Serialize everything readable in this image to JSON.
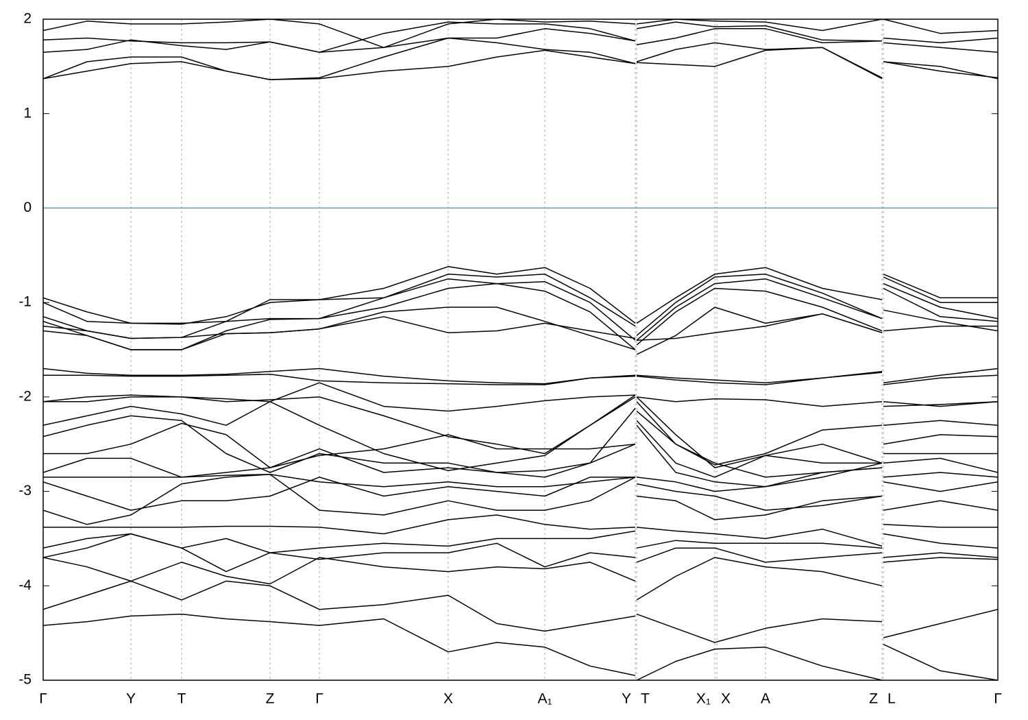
{
  "chart_data": {
    "type": "line",
    "x": [
      0,
      64,
      128,
      202,
      267,
      331,
      403,
      497,
      591,
      662,
      732,
      798,
      864,
      865,
      866,
      923,
      980,
      1054,
      1137,
      1224,
      1225,
      1226,
      1309,
      1393
    ],
    "xlim": [
      0,
      1393
    ],
    "xticks": [
      {
        "value": 0,
        "label": "Γ"
      },
      {
        "value": 128,
        "label": "Y"
      },
      {
        "value": 202,
        "label": "T"
      },
      {
        "value": 331,
        "label": "Z"
      },
      {
        "value": 403,
        "label": "Γ"
      },
      {
        "value": 591,
        "label": "X"
      },
      {
        "value": 732,
        "label": "A₁"
      },
      {
        "value": 864,
        "label": "Y"
      },
      {
        "value": 866,
        "label": "T"
      },
      {
        "value": 980,
        "label": "X₁"
      },
      {
        "value": 983,
        "label": "X"
      },
      {
        "value": 1054,
        "label": "A"
      },
      {
        "value": 1224,
        "label": "Z"
      },
      {
        "value": 1226,
        "label": "L"
      },
      {
        "value": 1393,
        "label": "Γ"
      }
    ],
    "ylim": [
      -5,
      2
    ],
    "yticks": [
      -5,
      -4,
      -3,
      -2,
      -1,
      0,
      1,
      2
    ],
    "grid": true,
    "hline": 0,
    "hline_color": "#4fa8c4",
    "series": [
      {
        "color": "#000000",
        "values": [
          1.37,
          1.45,
          1.53,
          1.55,
          1.45,
          1.36,
          1.37,
          1.45,
          1.5,
          1.6,
          1.67,
          1.6,
          1.53,
          null,
          1.54,
          1.52,
          1.5,
          1.67,
          1.7,
          1.37,
          null,
          1.55,
          1.5,
          1.37
        ]
      },
      {
        "color": "#000000",
        "values": [
          1.37,
          1.55,
          1.6,
          1.6,
          1.45,
          1.36,
          1.38,
          1.6,
          1.8,
          1.75,
          1.68,
          1.65,
          1.53,
          null,
          1.55,
          1.68,
          1.75,
          1.68,
          1.7,
          1.38,
          null,
          1.55,
          1.45,
          1.38
        ]
      },
      {
        "color": "#000000",
        "values": [
          1.65,
          1.68,
          1.78,
          1.72,
          1.68,
          1.76,
          1.65,
          1.7,
          1.8,
          1.8,
          1.9,
          1.85,
          1.77,
          null,
          1.73,
          1.8,
          1.9,
          1.9,
          1.75,
          1.77,
          null,
          1.75,
          1.7,
          1.65
        ]
      },
      {
        "color": "#000000",
        "values": [
          1.78,
          1.8,
          1.77,
          1.75,
          1.75,
          1.76,
          1.65,
          1.85,
          1.97,
          1.95,
          1.95,
          1.9,
          1.77,
          null,
          1.9,
          1.97,
          1.92,
          1.93,
          1.78,
          1.77,
          null,
          1.8,
          1.75,
          1.8
        ]
      },
      {
        "color": "#000000",
        "values": [
          1.88,
          1.98,
          1.95,
          1.95,
          1.97,
          2.0,
          1.95,
          1.7,
          1.95,
          2.0,
          1.97,
          1.98,
          1.95,
          null,
          1.95,
          2.0,
          1.98,
          1.97,
          1.88,
          2.0,
          null,
          2.0,
          1.85,
          1.88
        ]
      },
      {
        "color": "#000000",
        "values": [
          -0.95,
          -1.1,
          -1.22,
          -1.22,
          -1.2,
          -0.97,
          -0.97,
          -0.85,
          -0.62,
          -0.7,
          -0.63,
          -0.85,
          -1.22,
          null,
          -1.22,
          -0.95,
          -0.7,
          -0.63,
          -0.85,
          -0.97,
          null,
          -0.7,
          -0.95,
          -0.95
        ]
      },
      {
        "color": "#000000",
        "values": [
          -1.0,
          -1.2,
          -1.22,
          -1.23,
          -1.15,
          -1.0,
          -0.97,
          -0.95,
          -0.7,
          -0.73,
          -0.7,
          -0.95,
          -1.25,
          null,
          -1.35,
          -1.0,
          -0.73,
          -0.7,
          -0.9,
          -1.17,
          null,
          -0.73,
          -1.0,
          -1.0
        ]
      },
      {
        "color": "#000000",
        "values": [
          -1.15,
          -1.3,
          -1.38,
          -1.37,
          -1.2,
          -1.17,
          -1.17,
          -0.95,
          -0.75,
          -0.8,
          -0.78,
          -1.0,
          -1.4,
          null,
          -1.4,
          -1.05,
          -0.8,
          -0.75,
          -0.95,
          -1.17,
          null,
          -0.8,
          -1.05,
          -1.17
        ]
      },
      {
        "color": "#000000",
        "values": [
          -1.2,
          -1.35,
          -1.5,
          -1.5,
          -1.3,
          -1.18,
          -1.17,
          -1.05,
          -0.85,
          -0.8,
          -0.88,
          -1.1,
          -1.5,
          null,
          -1.45,
          -1.1,
          -0.85,
          -0.88,
          -1.05,
          -1.3,
          null,
          -0.85,
          -1.15,
          -1.2
        ]
      },
      {
        "color": "#000000",
        "values": [
          -1.3,
          -1.35,
          -1.5,
          -1.5,
          -1.33,
          -1.32,
          -1.28,
          -1.1,
          -1.05,
          -1.05,
          -1.2,
          -1.35,
          -1.5,
          null,
          -1.55,
          -1.35,
          -1.05,
          -1.22,
          -1.12,
          -1.32,
          null,
          -1.08,
          -1.2,
          -1.3
        ]
      },
      {
        "color": "#000000",
        "values": [
          -1.25,
          -1.3,
          -1.38,
          -1.37,
          -1.33,
          -1.32,
          -1.28,
          -1.15,
          -1.32,
          -1.3,
          -1.22,
          -1.3,
          -1.38,
          null,
          -1.4,
          -1.38,
          -1.32,
          -1.25,
          -1.12,
          -1.32,
          null,
          -1.3,
          -1.25,
          -1.25
        ]
      },
      {
        "color": "#000000",
        "values": [
          -1.7,
          -1.75,
          -1.77,
          -1.77,
          -1.76,
          -1.73,
          -1.7,
          -1.78,
          -1.83,
          -1.85,
          -1.86,
          -1.8,
          -1.77,
          null,
          -1.77,
          -1.8,
          -1.82,
          -1.85,
          -1.8,
          -1.73,
          null,
          -1.85,
          -1.77,
          -1.7
        ]
      },
      {
        "color": "#000000",
        "values": [
          -1.77,
          -1.77,
          -1.78,
          -1.78,
          -1.77,
          -1.76,
          -1.83,
          -1.85,
          -1.86,
          -1.87,
          -1.87,
          -1.8,
          -1.78,
          null,
          -1.78,
          -1.82,
          -1.85,
          -1.87,
          -1.8,
          -1.74,
          null,
          -1.87,
          -1.8,
          -1.77
        ]
      },
      {
        "color": "#000000",
        "values": [
          -2.05,
          -2.0,
          -1.98,
          -2.0,
          -2.02,
          -2.05,
          -1.85,
          -2.1,
          -2.15,
          -2.1,
          -2.04,
          -2.0,
          -1.98,
          null,
          -2.0,
          -2.05,
          -2.02,
          -2.03,
          -2.1,
          -2.05,
          null,
          -2.05,
          -2.1,
          -2.05
        ]
      },
      {
        "color": "#000000",
        "values": [
          -2.05,
          -2.05,
          -2.0,
          -2.0,
          -2.05,
          -2.03,
          -2.0,
          -2.2,
          -2.42,
          -2.5,
          -2.6,
          -2.3,
          -1.98,
          null,
          -2.05,
          -2.5,
          -2.72,
          -2.6,
          -2.35,
          -2.3,
          null,
          -2.1,
          -2.08,
          -2.05
        ]
      },
      {
        "color": "#000000",
        "values": [
          -2.3,
          -2.2,
          -2.1,
          -2.18,
          -2.3,
          -2.05,
          -2.3,
          -2.6,
          -2.78,
          -2.7,
          -2.62,
          -2.3,
          -2.0,
          null,
          -2.0,
          -2.4,
          -2.75,
          -2.62,
          -2.5,
          -2.7,
          null,
          -2.3,
          -2.25,
          -2.3
        ]
      },
      {
        "color": "#000000",
        "values": [
          -2.42,
          -2.3,
          -2.2,
          -2.25,
          -2.6,
          -2.8,
          -2.6,
          -2.7,
          -2.7,
          -2.8,
          -2.78,
          -2.7,
          -2.12,
          null,
          -2.15,
          -2.5,
          -2.7,
          -2.85,
          -2.8,
          -2.75,
          null,
          -2.5,
          -2.4,
          -2.42
        ]
      },
      {
        "color": "#000000",
        "values": [
          -2.6,
          -2.6,
          -2.5,
          -2.28,
          -2.4,
          -2.75,
          -2.62,
          -2.55,
          -2.4,
          -2.55,
          -2.55,
          -2.55,
          -2.5,
          null,
          -2.25,
          -2.7,
          -2.85,
          -2.62,
          -2.7,
          -2.7,
          null,
          -2.6,
          -2.6,
          -2.6
        ]
      },
      {
        "color": "#000000",
        "values": [
          -2.8,
          -2.65,
          -2.65,
          -2.85,
          -2.8,
          -2.75,
          -2.55,
          -2.8,
          -2.75,
          -2.8,
          -2.85,
          -2.7,
          -2.5,
          null,
          -2.3,
          -2.8,
          -2.9,
          -2.95,
          -2.8,
          -2.75,
          null,
          -2.7,
          -2.65,
          -2.8
        ]
      },
      {
        "color": "#000000",
        "values": [
          -2.85,
          -2.85,
          -2.85,
          -2.85,
          -2.83,
          -2.82,
          -2.9,
          -2.95,
          -2.9,
          -2.95,
          -2.95,
          -2.9,
          -2.85,
          null,
          -2.85,
          -2.9,
          -3.0,
          -2.95,
          -2.85,
          -2.7,
          null,
          -2.85,
          -2.8,
          -2.85
        ]
      },
      {
        "color": "#000000",
        "values": [
          -2.9,
          -3.05,
          -3.2,
          -3.1,
          -3.1,
          -3.05,
          -2.85,
          -3.05,
          -2.95,
          -3.0,
          -3.05,
          -2.85,
          -2.85,
          null,
          -2.92,
          -3.0,
          -3.05,
          -3.2,
          -3.15,
          -3.05,
          null,
          -2.9,
          -3.0,
          -2.9
        ]
      },
      {
        "color": "#000000",
        "values": [
          -3.2,
          -3.35,
          -3.25,
          -2.92,
          -2.85,
          -2.82,
          -3.2,
          -3.25,
          -3.1,
          -3.2,
          -3.2,
          -3.1,
          -2.85,
          null,
          -3.05,
          -3.1,
          -3.3,
          -3.25,
          -3.1,
          -3.05,
          null,
          -3.2,
          -3.1,
          -3.2
        ]
      },
      {
        "color": "#000000",
        "values": [
          -3.38,
          -3.38,
          -3.38,
          -3.38,
          -3.37,
          -3.37,
          -3.38,
          -3.45,
          -3.3,
          -3.25,
          -3.35,
          -3.4,
          -3.38,
          null,
          -3.38,
          -3.42,
          -3.45,
          -3.5,
          -3.4,
          -3.58,
          null,
          -3.35,
          -3.38,
          -3.38
        ]
      },
      {
        "color": "#000000",
        "values": [
          -3.6,
          -3.5,
          -3.45,
          -3.6,
          -3.5,
          -3.65,
          -3.6,
          -3.55,
          -3.58,
          -3.5,
          -3.5,
          -3.5,
          -3.42,
          null,
          -3.6,
          -3.52,
          -3.55,
          -3.55,
          -3.55,
          -3.6,
          null,
          -3.45,
          -3.55,
          -3.6
        ]
      },
      {
        "color": "#000000",
        "values": [
          -3.7,
          -3.6,
          -3.45,
          -3.6,
          -3.85,
          -3.65,
          -3.72,
          -3.65,
          -3.65,
          -3.55,
          -3.8,
          -3.65,
          -3.7,
          null,
          -3.75,
          -3.6,
          -3.6,
          -3.75,
          -3.7,
          -3.65,
          null,
          -3.7,
          -3.65,
          -3.7
        ]
      },
      {
        "color": "#000000",
        "values": [
          -3.7,
          -3.8,
          -3.95,
          -3.75,
          -3.9,
          -3.98,
          -3.7,
          -3.8,
          -3.85,
          -3.8,
          -3.82,
          -3.75,
          -3.95,
          null,
          -4.15,
          -3.9,
          -3.7,
          -3.8,
          -3.85,
          -4.0,
          null,
          -3.75,
          -3.7,
          -3.72
        ]
      },
      {
        "color": "#000000",
        "values": [
          -4.25,
          -4.1,
          -3.95,
          -4.15,
          -3.95,
          -4.0,
          -4.25,
          -4.2,
          -4.1,
          -4.4,
          -4.48,
          -4.4,
          -4.32,
          null,
          -4.3,
          -4.45,
          -4.6,
          -4.45,
          -4.35,
          -4.38,
          null,
          -4.55,
          -4.4,
          -4.25
        ]
      },
      {
        "color": "#000000",
        "values": [
          -4.42,
          -4.38,
          -4.32,
          -4.3,
          -4.35,
          -4.38,
          -4.42,
          -4.35,
          -4.7,
          -4.6,
          -4.65,
          -4.85,
          -4.95,
          null,
          -5.0,
          -4.8,
          -4.67,
          -4.65,
          -4.85,
          -5.0,
          null,
          -4.62,
          -4.9,
          -5.0
        ]
      }
    ]
  }
}
